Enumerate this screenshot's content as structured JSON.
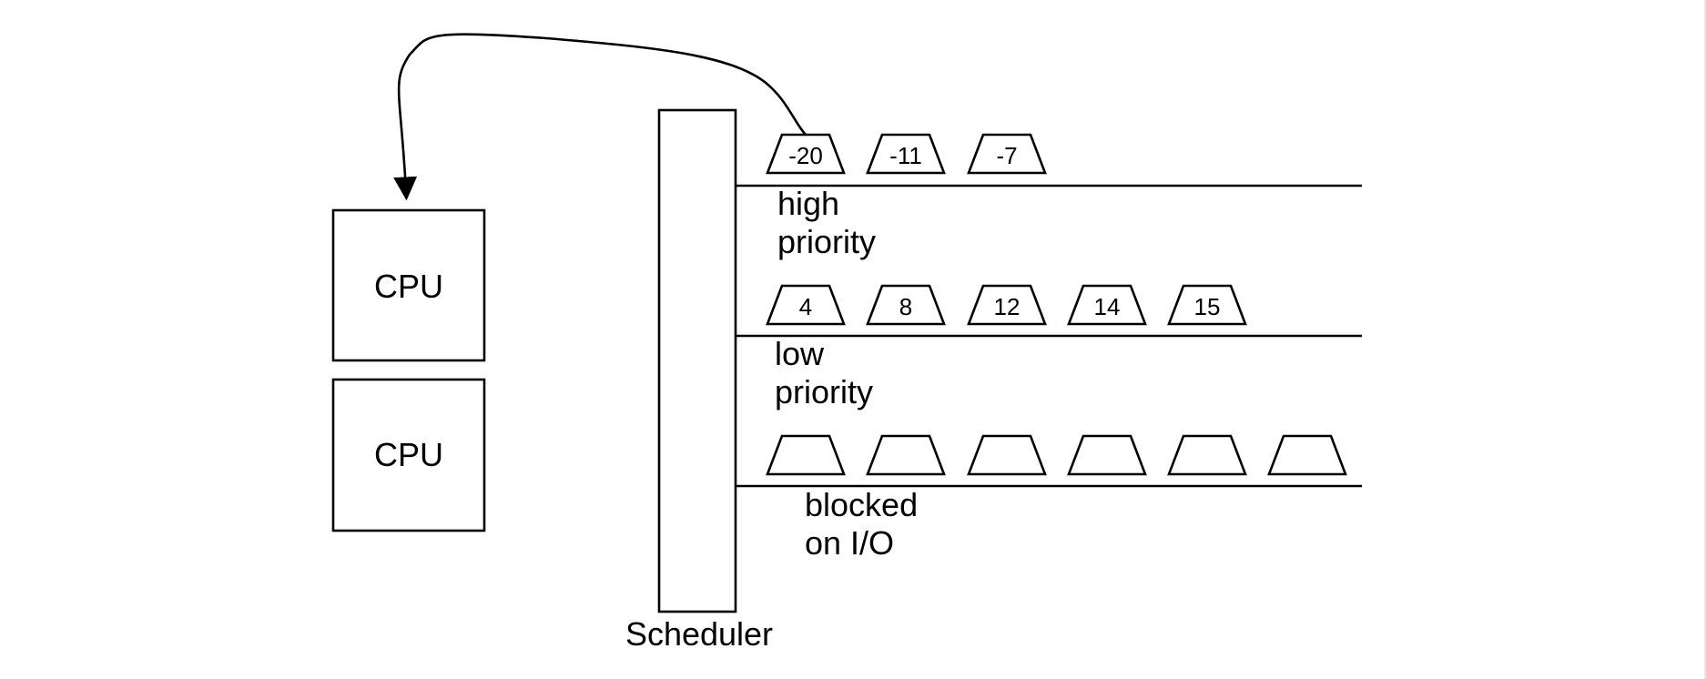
{
  "cpus": [
    {
      "label": "CPU"
    },
    {
      "label": "CPU"
    }
  ],
  "scheduler": {
    "label": "Scheduler"
  },
  "queues": [
    {
      "name": "high",
      "label_line1": "high",
      "label_line2": "priority",
      "tasks": [
        "-20",
        "-11",
        "-7"
      ]
    },
    {
      "name": "low",
      "label_line1": "low",
      "label_line2": "priority",
      "tasks": [
        "4",
        "8",
        "12",
        "14",
        "15"
      ]
    },
    {
      "name": "blocked",
      "label_line1": "blocked",
      "label_line2": "on I/O",
      "tasks": [
        "",
        "",
        "",
        "",
        "",
        ""
      ]
    }
  ],
  "dispatch_arrow": {
    "from_task": "-20",
    "to": "CPU"
  },
  "colors": {
    "stroke": "#000000",
    "background": "#ffffff"
  }
}
